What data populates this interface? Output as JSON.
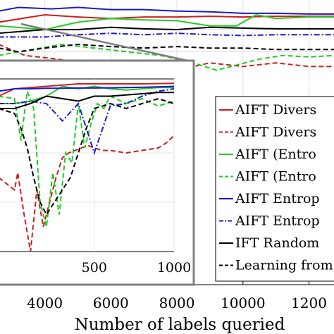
{
  "chart_data": {
    "type": "line",
    "xlabel": "Number of labels queried",
    "xlim": [
      2600,
      12800
    ],
    "x_ticks": [
      "4000",
      "6000",
      "8000",
      "10000",
      "1200"
    ],
    "legend_position": "right",
    "series": [
      {
        "name": "AIFT Divers",
        "color": "#cc1f1f",
        "dash": "solid",
        "x": [
          2600,
          4000,
          5000,
          6000,
          7000,
          8000,
          9000,
          10000,
          11000,
          12000,
          12800
        ],
        "y": [
          0.955,
          0.965,
          0.962,
          0.96,
          0.962,
          0.962,
          0.963,
          0.962,
          0.963,
          0.963,
          0.963
        ]
      },
      {
        "name": "AIFT Divers",
        "color": "#cc1f1f",
        "dash": "dashed",
        "x": [
          2600,
          3400,
          4400,
          5000,
          5500,
          6000,
          7000,
          8000,
          9000,
          10000,
          11000,
          12000,
          12800
        ],
        "y": [
          0.925,
          0.91,
          0.905,
          0.9,
          0.895,
          0.9,
          0.895,
          0.89,
          0.9,
          0.895,
          0.9,
          0.895,
          0.895
        ]
      },
      {
        "name": "AIFT (Entro",
        "color": "#22cc22",
        "dash": "solid",
        "x": [
          2600,
          4000,
          5000,
          6000,
          7000,
          8000,
          9000,
          9800,
          10400,
          11000,
          12000,
          12800
        ],
        "y": [
          0.95,
          0.945,
          0.955,
          0.96,
          0.958,
          0.957,
          0.95,
          0.95,
          0.965,
          0.96,
          0.962,
          0.962
        ]
      },
      {
        "name": "AIFT (Entro",
        "color": "#22cc22",
        "dash": "dashed",
        "x": [
          2600,
          4500,
          5500,
          6500,
          7500,
          8500,
          9200,
          10500,
          11200,
          12000,
          12800
        ],
        "y": [
          0.91,
          0.925,
          0.92,
          0.915,
          0.91,
          0.9,
          0.89,
          0.905,
          0.91,
          0.908,
          0.91
        ]
      },
      {
        "name": "AIFT Entrop",
        "color": "#1a1acc",
        "dash": "solid",
        "x": [
          2600,
          3200,
          4200,
          5000,
          6000,
          7000,
          8000,
          9000,
          10000,
          11000,
          12000,
          12800
        ],
        "y": [
          0.97,
          0.975,
          0.973,
          0.975,
          0.972,
          0.972,
          0.97,
          0.969,
          0.967,
          0.967,
          0.966,
          0.966
        ]
      },
      {
        "name": "AIFT Entrop",
        "color": "#1a1acc",
        "dash": "dashdot",
        "x": [
          2600,
          4000,
          5000,
          6000,
          7000,
          8000,
          9000,
          10000,
          11000,
          12000,
          12800
        ],
        "y": [
          0.935,
          0.935,
          0.938,
          0.94,
          0.938,
          0.94,
          0.938,
          0.937,
          0.938,
          0.938,
          0.938
        ]
      },
      {
        "name": "IFT Random",
        "color": "#000000",
        "dash": "solid",
        "x": [
          2600,
          4000,
          5000,
          6000,
          7000,
          8000,
          9000,
          10000,
          11000,
          12000,
          12800
        ],
        "y": [
          0.94,
          0.945,
          0.945,
          0.948,
          0.946,
          0.945,
          0.948,
          0.947,
          0.946,
          0.946,
          0.946
        ]
      },
      {
        "name": "Learning from",
        "color": "#000000",
        "dash": "dashed",
        "x": [
          2600,
          3200,
          4000,
          5000,
          6000,
          7000,
          8000,
          9000,
          10000,
          11000,
          12000,
          12800
        ],
        "y": [
          0.92,
          0.915,
          0.92,
          0.925,
          0.922,
          0.92,
          0.922,
          0.92,
          0.92,
          0.918,
          0.918,
          0.918
        ]
      }
    ],
    "inset": {
      "xlim": [
        -100,
        1000
      ],
      "x_ticks": [
        "500",
        "1000"
      ],
      "series": [
        {
          "color": "#cc1f1f",
          "dash": "solid",
          "x": [
            -100,
            0,
            100,
            200,
            300,
            400,
            500,
            600,
            700,
            800,
            900,
            1000
          ],
          "y": [
            0.93,
            0.96,
            0.965,
            0.97,
            0.975,
            0.98,
            0.98,
            0.98,
            0.98,
            0.98,
            0.981,
            0.982
          ]
        },
        {
          "color": "#cc1f1f",
          "dash": "dashed",
          "x": [
            -100,
            0,
            20,
            60,
            100,
            140,
            180,
            220,
            260,
            300,
            340,
            380,
            420,
            460,
            500,
            550,
            600,
            700,
            800,
            900,
            950,
            1000
          ],
          "y": [
            0.6,
            0.55,
            0.62,
            0.45,
            0.2,
            0.55,
            0.4,
            0.5,
            0.6,
            0.68,
            0.7,
            0.71,
            0.72,
            0.73,
            0.72,
            0.71,
            0.71,
            0.7,
            0.71,
            0.72,
            0.74,
            0.77
          ]
        },
        {
          "color": "#22cc22",
          "dash": "solid",
          "x": [
            -100,
            0,
            100,
            200,
            300,
            400,
            500,
            600,
            700,
            800,
            900,
            1000
          ],
          "y": [
            0.9,
            0.9,
            0.91,
            0.93,
            0.97,
            0.96,
            0.97,
            0.96,
            0.955,
            0.96,
            0.965,
            0.965
          ]
        },
        {
          "color": "#22cc22",
          "dash": "dashed",
          "x": [
            -100,
            0,
            40,
            80,
            120,
            160,
            200,
            240,
            280,
            320,
            360,
            400,
            440,
            480,
            520,
            560,
            600,
            700,
            800,
            900,
            1000
          ],
          "y": [
            0.93,
            0.92,
            0.75,
            0.95,
            0.88,
            0.5,
            0.4,
            0.62,
            0.45,
            0.7,
            0.66,
            0.9,
            0.72,
            0.82,
            0.9,
            0.88,
            0.93,
            0.9,
            0.92,
            0.89,
            0.91
          ]
        },
        {
          "color": "#1a1acc",
          "dash": "solid",
          "x": [
            -100,
            0,
            100,
            200,
            300,
            400,
            500,
            600,
            700,
            800,
            900,
            1000
          ],
          "y": [
            0.95,
            0.96,
            0.96,
            0.962,
            0.962,
            0.963,
            0.963,
            0.964,
            0.965,
            0.966,
            0.968,
            0.97
          ]
        },
        {
          "color": "#1a1acc",
          "dash": "dashdot",
          "x": [
            -100,
            0,
            100,
            200,
            300,
            400,
            500,
            600,
            700,
            800,
            900,
            1000
          ],
          "y": [
            0.9,
            0.9,
            0.91,
            0.9,
            0.83,
            0.9,
            0.7,
            0.89,
            0.9,
            0.93,
            0.95,
            0.96
          ]
        },
        {
          "color": "#000000",
          "dash": "solid",
          "x": [
            -100,
            0,
            100,
            200,
            300,
            400,
            500,
            600,
            700,
            800,
            900,
            1000
          ],
          "y": [
            0.88,
            0.88,
            0.9,
            0.93,
            0.92,
            0.91,
            0.93,
            0.93,
            0.935,
            0.94,
            0.945,
            0.945
          ]
        },
        {
          "color": "#000000",
          "dash": "dashed",
          "x": [
            -100,
            0,
            40,
            80,
            120,
            160,
            200,
            250,
            300,
            350,
            400,
            450,
            500,
            600,
            700,
            800,
            900,
            1000
          ],
          "y": [
            0.88,
            0.86,
            0.8,
            0.72,
            0.6,
            0.5,
            0.45,
            0.5,
            0.55,
            0.6,
            0.7,
            0.8,
            0.88,
            0.9,
            0.88,
            0.9,
            0.92,
            0.9
          ]
        }
      ]
    }
  }
}
